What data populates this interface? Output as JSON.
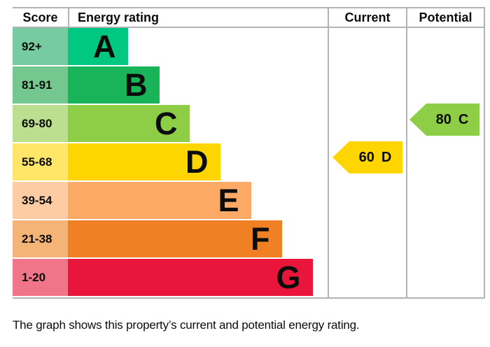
{
  "header": {
    "score": "Score",
    "energy_rating": "Energy rating",
    "current": "Current",
    "potential": "Potential"
  },
  "chart_data": {
    "type": "bar",
    "description": "EPC energy efficiency rating bands",
    "categories": [
      "A",
      "B",
      "C",
      "D",
      "E",
      "F",
      "G"
    ],
    "bands": [
      {
        "letter": "A",
        "score": "92+",
        "color": "#00c781",
        "tint": "#77cba0"
      },
      {
        "letter": "B",
        "score": "81-91",
        "color": "#19b459",
        "tint": "#74c78f"
      },
      {
        "letter": "C",
        "score": "69-80",
        "color": "#8dce46",
        "tint": "#bbdf8e"
      },
      {
        "letter": "D",
        "score": "55-68",
        "color": "#ffd500",
        "tint": "#ffe669"
      },
      {
        "letter": "E",
        "score": "39-54",
        "color": "#fcaa65",
        "tint": "#fdcca3"
      },
      {
        "letter": "F",
        "score": "21-38",
        "color": "#ef8023",
        "tint": "#f4b377"
      },
      {
        "letter": "G",
        "score": "1-20",
        "color": "#e9153b",
        "tint": "#f07589"
      }
    ],
    "current": {
      "value": "60",
      "band": "D",
      "color": "#ffd500"
    },
    "potential": {
      "value": "80",
      "band": "C",
      "color": "#8dce46"
    },
    "layout": {
      "legend": "none",
      "grid": "off",
      "border_color": "#b1b4b6",
      "text_color": "#0b0c0c"
    }
  },
  "caption": "The graph shows this property’s current and potential energy rating."
}
